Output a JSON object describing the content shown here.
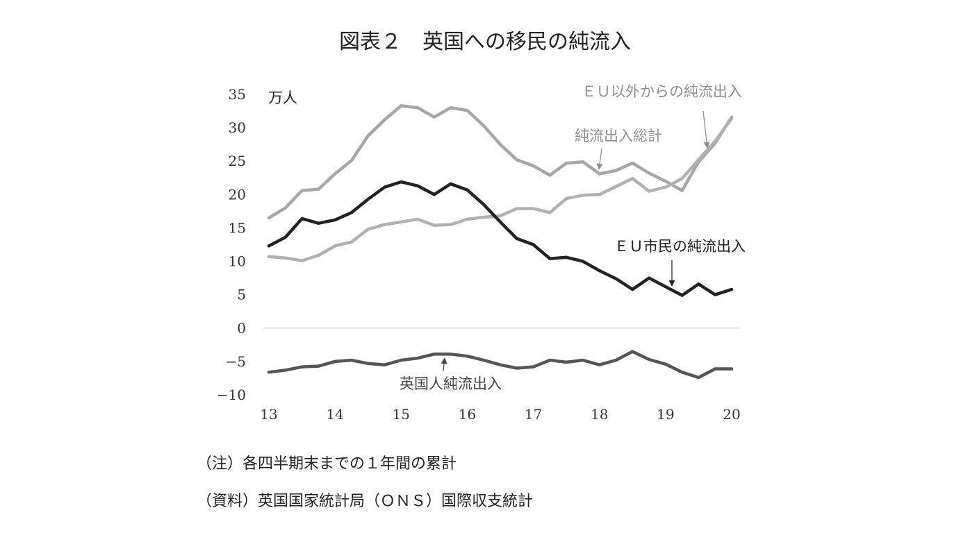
{
  "chart_data": {
    "type": "line",
    "title": "図表２　英国への移民の純流入",
    "unit": "万人",
    "ylim": [
      -10,
      35
    ],
    "yticks": [
      35,
      30,
      25,
      20,
      15,
      10,
      5,
      0,
      -5,
      -10
    ],
    "ytick_labels": [
      "35",
      "30",
      "25",
      "20",
      "15",
      "10",
      "5",
      "0",
      "−5",
      "−10"
    ],
    "xlim": [
      13,
      20
    ],
    "xticks": [
      13,
      14,
      15,
      16,
      17,
      18,
      19,
      20
    ],
    "xtick_labels": [
      "13",
      "14",
      "15",
      "16",
      "17",
      "18",
      "19",
      "20"
    ],
    "grid": false,
    "zero_line": true,
    "colors": {
      "total": "#a6a6a6",
      "non_eu": "#b0b0b0",
      "eu": "#222222",
      "british": "#555555"
    },
    "x": [
      13.0,
      13.25,
      13.5,
      13.75,
      14.0,
      14.25,
      14.5,
      14.75,
      15.0,
      15.25,
      15.5,
      15.75,
      16.0,
      16.25,
      16.5,
      16.75,
      17.0,
      17.25,
      17.5,
      17.75,
      18.0,
      18.25,
      18.5,
      18.75,
      19.0,
      19.25,
      19.5,
      19.75,
      20.0
    ],
    "series": [
      {
        "id": "total",
        "name": "純流出入総計",
        "values": [
          16.5,
          18.0,
          20.6,
          20.8,
          23.1,
          25.1,
          28.8,
          31.2,
          33.3,
          33.0,
          31.6,
          33.0,
          32.6,
          30.3,
          27.5,
          25.2,
          24.3,
          22.9,
          24.7,
          24.9,
          23.1,
          23.6,
          24.7,
          23.2,
          22.0,
          20.6,
          24.9,
          27.7,
          31.6
        ]
      },
      {
        "id": "non_eu",
        "name": "ＥＵ以外からの純流出入",
        "values": [
          10.7,
          10.5,
          10.1,
          10.9,
          12.3,
          12.9,
          14.8,
          15.5,
          15.9,
          16.3,
          15.4,
          15.5,
          16.3,
          16.6,
          16.8,
          17.9,
          17.9,
          17.3,
          19.4,
          19.9,
          20.0,
          21.2,
          22.4,
          20.5,
          21.1,
          22.4,
          25.2,
          28.0,
          31.4
        ]
      },
      {
        "id": "eu",
        "name": "ＥＵ市民の純流出入",
        "values": [
          12.3,
          13.6,
          16.4,
          15.7,
          16.2,
          17.3,
          19.3,
          21.1,
          21.9,
          21.3,
          20.0,
          21.6,
          20.7,
          18.5,
          15.9,
          13.4,
          12.5,
          10.4,
          10.6,
          10.0,
          8.6,
          7.4,
          5.8,
          7.5,
          6.2,
          4.9,
          6.6,
          5.0,
          5.8
        ]
      },
      {
        "id": "british",
        "name": "英国人純流出入",
        "values": [
          -6.6,
          -6.3,
          -5.8,
          -5.7,
          -5.0,
          -4.8,
          -5.3,
          -5.5,
          -4.8,
          -4.5,
          -3.9,
          -3.9,
          -4.2,
          -4.8,
          -5.5,
          -6.0,
          -5.8,
          -4.8,
          -5.1,
          -4.8,
          -5.5,
          -4.8,
          -3.5,
          -4.7,
          -5.4,
          -6.6,
          -7.4,
          -6.1,
          -6.1
        ]
      }
    ],
    "annotations": [
      {
        "series": "non_eu",
        "text": "ＥＵ以外からの純流出入"
      },
      {
        "series": "total",
        "text": "純流出入総計"
      },
      {
        "series": "eu",
        "text": "ＥＵ市民の純流出入"
      },
      {
        "series": "british",
        "text": "英国人純流出入"
      }
    ]
  },
  "notes": {
    "note": "（注）各四半期末までの１年間の累計",
    "source": "（資料）英国国家統計局（ＯＮＳ）国際収支統計"
  }
}
